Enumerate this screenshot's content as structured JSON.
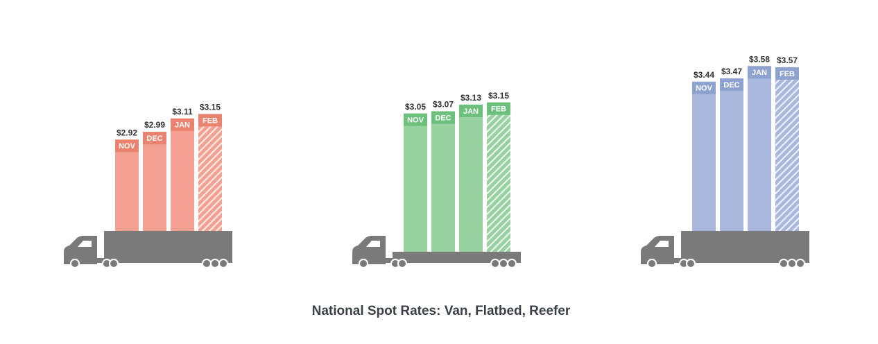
{
  "title": "National Spot Rates: Van, Flatbed, Reefer",
  "chart_data": [
    {
      "type": "bar",
      "trailer": "box",
      "categories": [
        "NOV",
        "DEC",
        "JAN",
        "FEB"
      ],
      "values": [
        2.92,
        2.99,
        3.11,
        3.15
      ],
      "value_labels": [
        "$2.92",
        "$2.99",
        "$3.11",
        "$3.15"
      ],
      "color": "#f2a192",
      "label_color": "#ea8270",
      "hatched": [
        false,
        false,
        false,
        true
      ],
      "ylim": [
        2.1,
        3.8
      ]
    },
    {
      "type": "bar",
      "trailer": "flat",
      "categories": [
        "NOV",
        "DEC",
        "JAN",
        "FEB"
      ],
      "values": [
        3.05,
        3.07,
        3.13,
        3.15
      ],
      "value_labels": [
        "$3.05",
        "$3.07",
        "$3.13",
        "$3.15"
      ],
      "color": "#98d2a0",
      "label_color": "#6dbf7c",
      "hatched": [
        false,
        false,
        false,
        true
      ],
      "ylim": [
        1.8,
        3.7
      ]
    },
    {
      "type": "bar",
      "trailer": "box",
      "categories": [
        "NOV",
        "DEC",
        "JAN",
        "FEB"
      ],
      "values": [
        3.44,
        3.47,
        3.58,
        3.57
      ],
      "value_labels": [
        "$3.44",
        "$3.47",
        "$3.58",
        "$3.57"
      ],
      "color": "#a9b8dc",
      "label_color": "#8ea2d0",
      "hatched": [
        false,
        false,
        false,
        true
      ],
      "ylim": [
        2.1,
        3.8
      ]
    }
  ]
}
